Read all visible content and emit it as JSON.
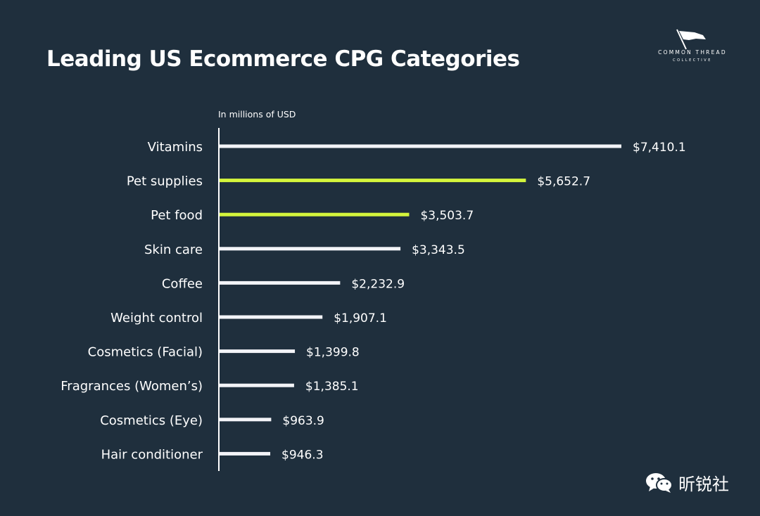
{
  "title": "Leading US Ecommerce CPG Categories",
  "logo": {
    "name": "COMMON THREAD",
    "sub": "COLLECTIVE"
  },
  "watermark": {
    "text": "昕锐社"
  },
  "colors": {
    "background": "#1f2f3d",
    "bar_default": "#f3f4f8",
    "bar_highlight": "#d4f53c",
    "axis": "#ffffff"
  },
  "chart_data": {
    "type": "bar",
    "orientation": "horizontal",
    "title": "Leading US Ecommerce CPG Categories",
    "unit_label": "In millions of USD",
    "categories": [
      "Vitamins",
      "Pet supplies",
      "Pet food",
      "Skin care",
      "Coffee",
      "Weight control",
      "Cosmetics (Facial)",
      "Fragrances (Women’s)",
      "Cosmetics (Eye)",
      "Hair conditioner"
    ],
    "values": [
      7410.1,
      5652.7,
      3503.7,
      3343.5,
      2232.9,
      1907.1,
      1399.8,
      1385.1,
      963.9,
      946.3
    ],
    "value_labels": [
      "$7,410.1",
      "$5,652.7",
      "$3,503.7",
      "$3,343.5",
      "$2,232.9",
      "$1,907.1",
      "$1,399.8",
      "$1,385.1",
      "$963.9",
      "$946.3"
    ],
    "highlighted": [
      "Pet supplies",
      "Pet food"
    ],
    "xlim": [
      0,
      7410.1
    ],
    "grid": false,
    "legend": "none"
  }
}
